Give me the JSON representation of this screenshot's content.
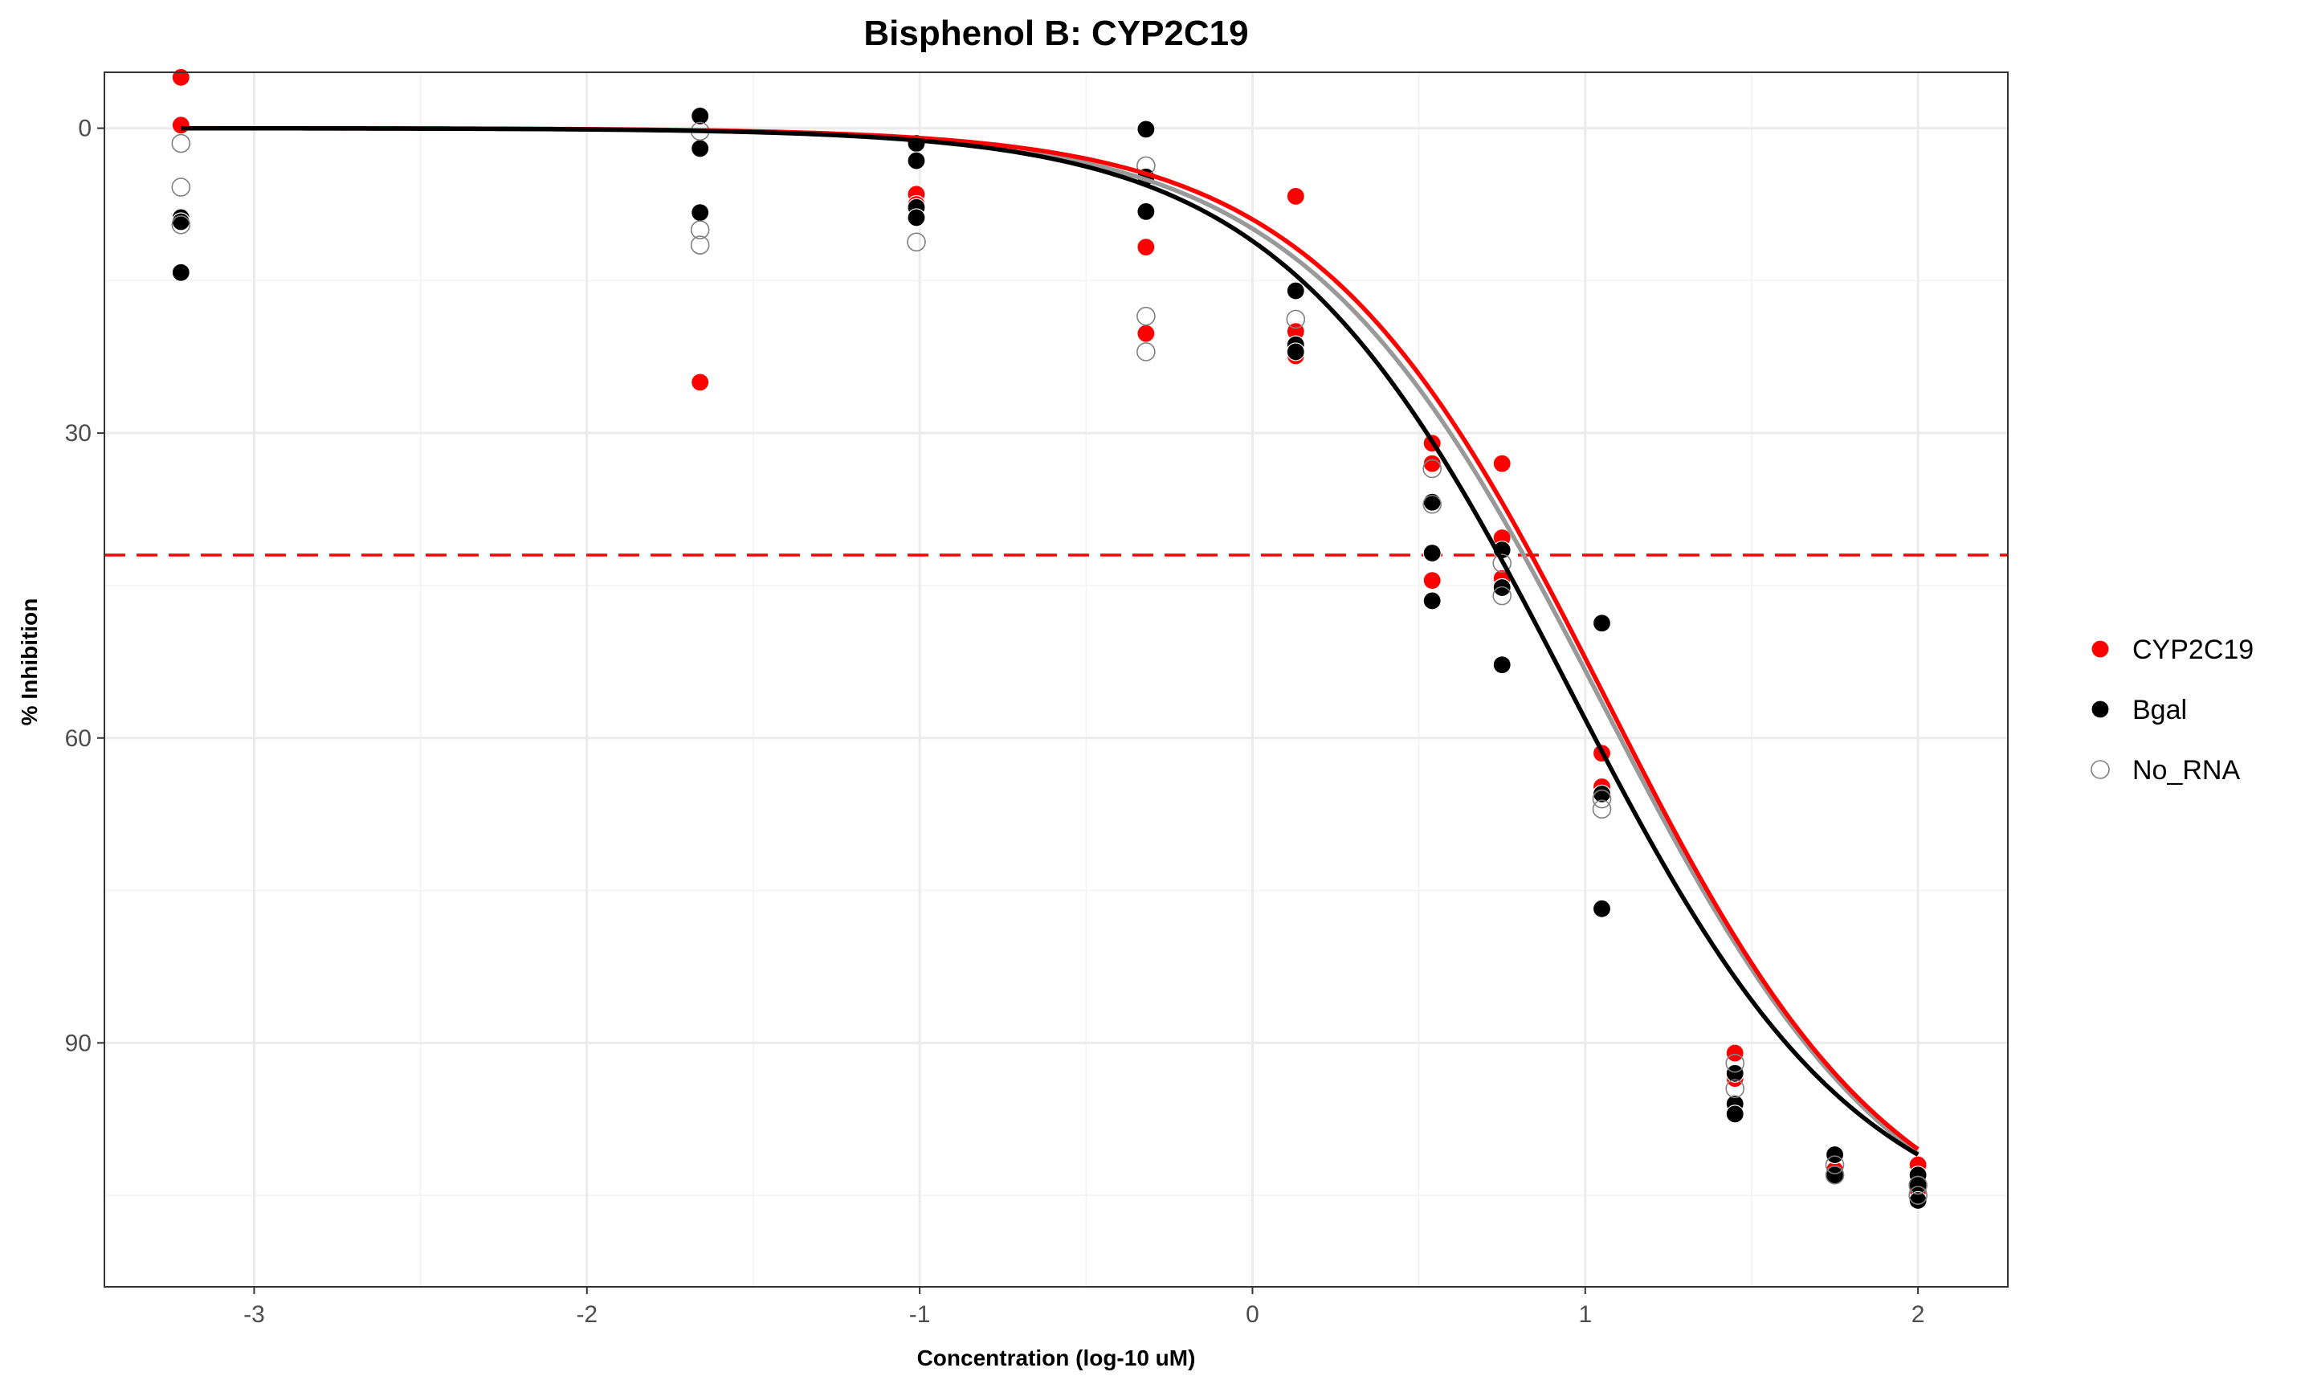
{
  "chart_data": {
    "type": "scatter",
    "title": "Bisphenol B: CYP2C19",
    "xlabel": "Concentration (log-10 uM)",
    "ylabel": "% Inhibition",
    "xlim": [
      -3.45,
      2.27
    ],
    "ylim": [
      -5.5,
      114
    ],
    "y_reversed": true,
    "x_ticks": [
      -3,
      -2,
      -1,
      0,
      1,
      2
    ],
    "x_tick_labels": [
      "-3",
      "-2",
      "-1",
      "0",
      "1",
      "2"
    ],
    "y_ticks": [
      0,
      30,
      60,
      90
    ],
    "y_tick_labels": [
      "0",
      "30",
      "60",
      "90"
    ],
    "grid": true,
    "legend_position": "right",
    "threshold_line": {
      "y": 42,
      "color": "#ff0000",
      "style": "dashed"
    },
    "series": [
      {
        "name": "CYP2C19",
        "color": "#ff0000",
        "marker": "filled",
        "curve": {
          "bottom": 0,
          "top": 112,
          "ec50_log": 1.06,
          "hill": 1.0
        },
        "points": [
          {
            "x": -3.22,
            "y": -5
          },
          {
            "x": -3.22,
            "y": -0.3
          },
          {
            "x": -1.66,
            "y": 25
          },
          {
            "x": -1.01,
            "y": 6.5
          },
          {
            "x": -1.01,
            "y": 7.5
          },
          {
            "x": -1.01,
            "y": 8.8
          },
          {
            "x": -0.32,
            "y": 11.7
          },
          {
            "x": -0.32,
            "y": 20.2
          },
          {
            "x": 0.13,
            "y": 6.7
          },
          {
            "x": 0.13,
            "y": 20
          },
          {
            "x": 0.13,
            "y": 22.4
          },
          {
            "x": 0.54,
            "y": 31
          },
          {
            "x": 0.54,
            "y": 33
          },
          {
            "x": 0.54,
            "y": 44.5
          },
          {
            "x": 0.75,
            "y": 33
          },
          {
            "x": 0.75,
            "y": 40.3
          },
          {
            "x": 0.75,
            "y": 44.3
          },
          {
            "x": 1.05,
            "y": 61.5
          },
          {
            "x": 1.05,
            "y": 64.8
          },
          {
            "x": 1.45,
            "y": 91
          },
          {
            "x": 1.45,
            "y": 93.5
          },
          {
            "x": 1.75,
            "y": 101
          },
          {
            "x": 1.75,
            "y": 102.5
          },
          {
            "x": 2.0,
            "y": 102
          },
          {
            "x": 2.0,
            "y": 104.5
          }
        ]
      },
      {
        "name": "Bgal",
        "color": "#000000",
        "marker": "filled",
        "curve": {
          "bottom": 0,
          "top": 110,
          "ec50_log": 0.95,
          "hill": 1.0
        },
        "points": [
          {
            "x": -3.22,
            "y": 8.8
          },
          {
            "x": -3.22,
            "y": 9.2
          },
          {
            "x": -3.22,
            "y": 14.2
          },
          {
            "x": -1.66,
            "y": -1.2
          },
          {
            "x": -1.66,
            "y": 2
          },
          {
            "x": -1.66,
            "y": 8.3
          },
          {
            "x": -1.01,
            "y": 1.5
          },
          {
            "x": -1.01,
            "y": 3.2
          },
          {
            "x": -1.01,
            "y": 7.8
          },
          {
            "x": -1.01,
            "y": 8.8
          },
          {
            "x": -0.32,
            "y": 0.1
          },
          {
            "x": -0.32,
            "y": 4.8
          },
          {
            "x": -0.32,
            "y": 8.2
          },
          {
            "x": 0.13,
            "y": 16
          },
          {
            "x": 0.13,
            "y": 21.3
          },
          {
            "x": 0.13,
            "y": 22
          },
          {
            "x": 0.54,
            "y": 36.8
          },
          {
            "x": 0.54,
            "y": 41.8
          },
          {
            "x": 0.54,
            "y": 46.5
          },
          {
            "x": 0.75,
            "y": 41.5
          },
          {
            "x": 0.75,
            "y": 45.2
          },
          {
            "x": 0.75,
            "y": 52.8
          },
          {
            "x": 1.05,
            "y": 48.7
          },
          {
            "x": 1.05,
            "y": 65.5
          },
          {
            "x": 1.05,
            "y": 76.8
          },
          {
            "x": 1.45,
            "y": 93
          },
          {
            "x": 1.45,
            "y": 96
          },
          {
            "x": 1.45,
            "y": 97
          },
          {
            "x": 1.75,
            "y": 101
          },
          {
            "x": 1.75,
            "y": 103
          },
          {
            "x": 2.0,
            "y": 103
          },
          {
            "x": 2.0,
            "y": 104
          },
          {
            "x": 2.0,
            "y": 105.5
          }
        ]
      },
      {
        "name": "No_RNA",
        "color": "#ffffff",
        "stroke": "#808080",
        "curve_color": "#999999",
        "marker": "open",
        "curve": {
          "bottom": 0,
          "top": 113,
          "ec50_log": 1.05,
          "hill": 0.97
        },
        "points": [
          {
            "x": -3.22,
            "y": 1.5
          },
          {
            "x": -3.22,
            "y": 5.8
          },
          {
            "x": -3.22,
            "y": 9.5
          },
          {
            "x": -1.66,
            "y": 0.3
          },
          {
            "x": -1.66,
            "y": 10
          },
          {
            "x": -1.66,
            "y": 11.5
          },
          {
            "x": -1.01,
            "y": 11.2
          },
          {
            "x": -0.32,
            "y": 3.7
          },
          {
            "x": -0.32,
            "y": 18.5
          },
          {
            "x": -0.32,
            "y": 22
          },
          {
            "x": 0.13,
            "y": 18.8
          },
          {
            "x": 0.54,
            "y": 33.5
          },
          {
            "x": 0.54,
            "y": 37
          },
          {
            "x": 0.75,
            "y": 42.8
          },
          {
            "x": 0.75,
            "y": 46
          },
          {
            "x": 1.05,
            "y": 66
          },
          {
            "x": 1.05,
            "y": 67
          },
          {
            "x": 1.45,
            "y": 92
          },
          {
            "x": 1.45,
            "y": 94.5
          },
          {
            "x": 1.75,
            "y": 102
          },
          {
            "x": 1.75,
            "y": 103
          },
          {
            "x": 2.0,
            "y": 104
          },
          {
            "x": 2.0,
            "y": 105
          }
        ]
      }
    ],
    "curve_draw_order": [
      "No_RNA",
      "CYP2C19",
      "Bgal"
    ]
  }
}
